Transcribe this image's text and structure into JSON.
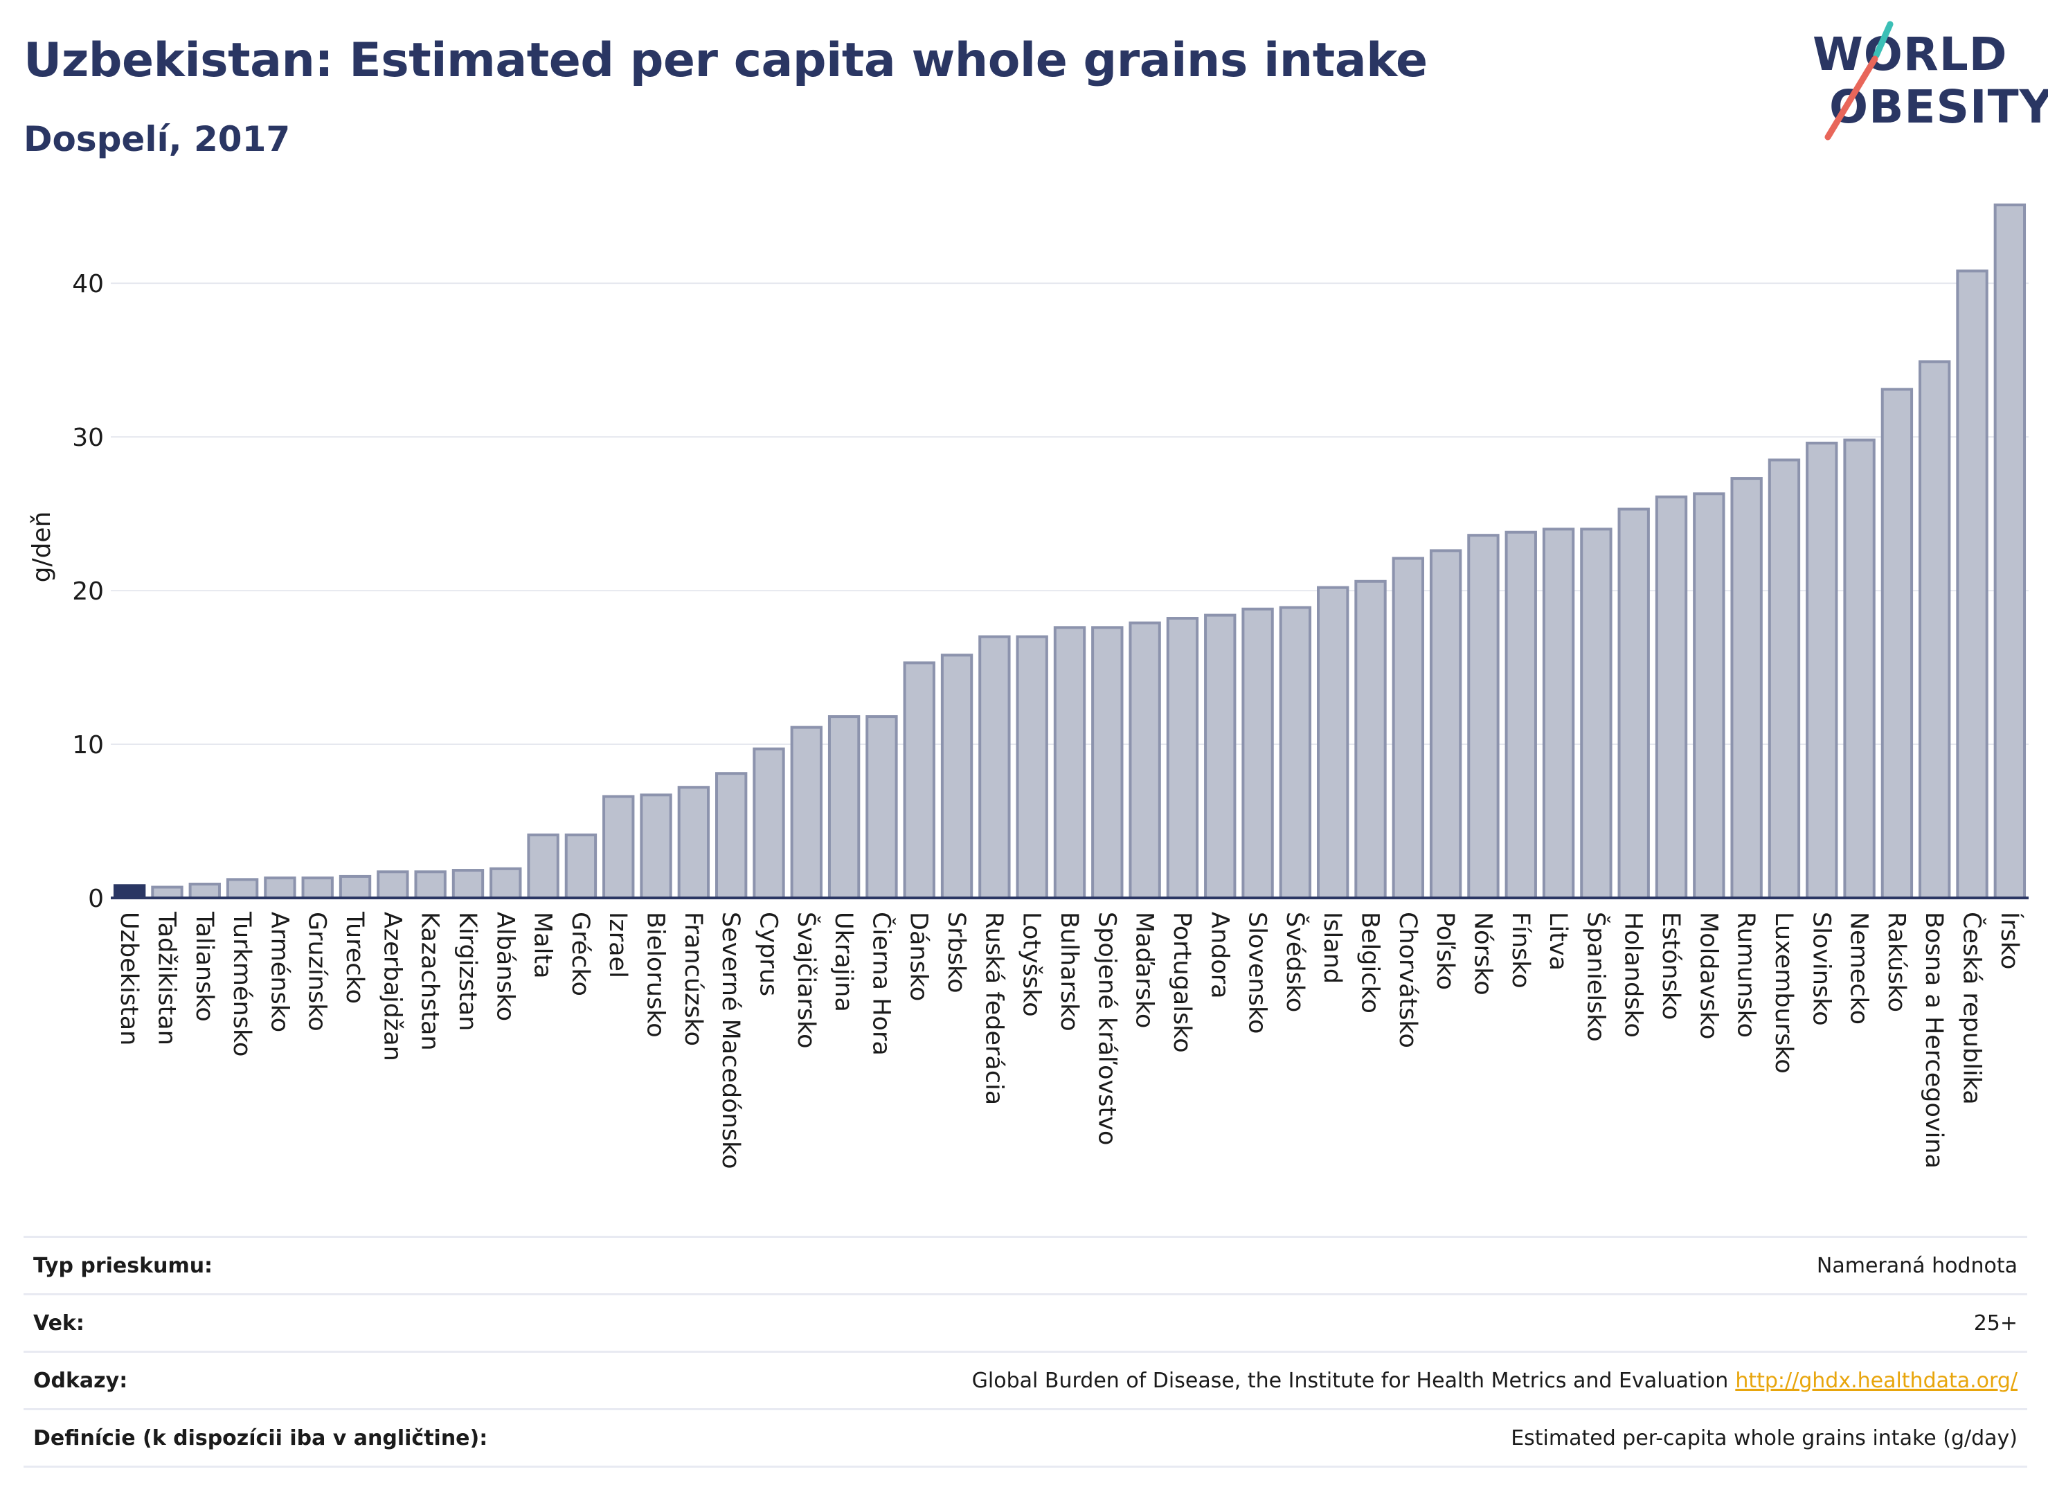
{
  "header": {
    "title": "Uzbekistan: Estimated per capita whole grains intake",
    "subtitle": "Dospelí, 2017"
  },
  "logo": {
    "line1": "WORLD",
    "line2": "OBESITY"
  },
  "colors": {
    "highlight": "#2a3663",
    "bar_fill": "#bcc1cf",
    "bar_stroke": "#8c93ad",
    "text": "#2a3663",
    "link": "#e8a50c",
    "logo_slash_top": "#3bbfb6",
    "logo_slash_bottom": "#e8665a"
  },
  "chart_data": {
    "type": "bar",
    "ylabel": "g/deň",
    "ylim": [
      0,
      46
    ],
    "yticks": [
      0,
      10,
      20,
      30,
      40
    ],
    "grid": true,
    "highlight": "Uzbekistan",
    "categories": [
      "Uzbekistan",
      "Tadžikistan",
      "Taliansko",
      "Turkménsko",
      "Arménsko",
      "Gruzínsko",
      "Turecko",
      "Azerbajdžan",
      "Kazachstan",
      "Kirgizstan",
      "Albánsko",
      "Malta",
      "Grécko",
      "Izrael",
      "Bielorusko",
      "Francúzsko",
      "Severné Macedónsko",
      "Cyprus",
      "Švajčiarsko",
      "Ukrajina",
      "Čierna Hora",
      "Dánsko",
      "Srbsko",
      "Ruská federácia",
      "Lotyšsko",
      "Bulharsko",
      "Spojené kráľovstvo",
      "Maďarsko",
      "Portugalsko",
      "Andora",
      "Slovensko",
      "Švédsko",
      "Island",
      "Belgicko",
      "Chorvátsko",
      "Poľsko",
      "Nórsko",
      "Fínsko",
      "Litva",
      "Španielsko",
      "Holandsko",
      "Estónsko",
      "Moldavsko",
      "Rumunsko",
      "Luxembursko",
      "Slovinsko",
      "Nemecko",
      "Rakúsko",
      "Bosna a Hercegovina",
      "Česká republika",
      "Írsko"
    ],
    "values": [
      0.8,
      0.7,
      0.9,
      1.2,
      1.3,
      1.3,
      1.4,
      1.7,
      1.7,
      1.8,
      1.9,
      4.1,
      4.1,
      6.6,
      6.7,
      7.2,
      8.1,
      9.7,
      11.1,
      11.8,
      11.8,
      15.3,
      15.8,
      17.0,
      17.0,
      17.6,
      17.6,
      17.9,
      18.2,
      18.4,
      18.8,
      18.9,
      20.2,
      20.6,
      22.1,
      22.6,
      23.6,
      23.8,
      24.0,
      24.0,
      25.3,
      26.1,
      26.3,
      27.3,
      28.5,
      29.6,
      29.8,
      33.1,
      34.9,
      40.8,
      45.1
    ]
  },
  "info": {
    "survey_label": "Typ prieskumu:",
    "survey_value": "Nameraná hodnota",
    "age_label": "Vek:",
    "age_value": "25+",
    "refs_label": "Odkazy:",
    "refs_value": "Global Burden of Disease, the Institute for Health Metrics and Evaluation",
    "refs_link": "http://ghdx.healthdata.org/",
    "def_label": "Definície (k dispozícii iba v angličtine):",
    "def_value": "Estimated per-capita whole grains intake (g/day)"
  }
}
